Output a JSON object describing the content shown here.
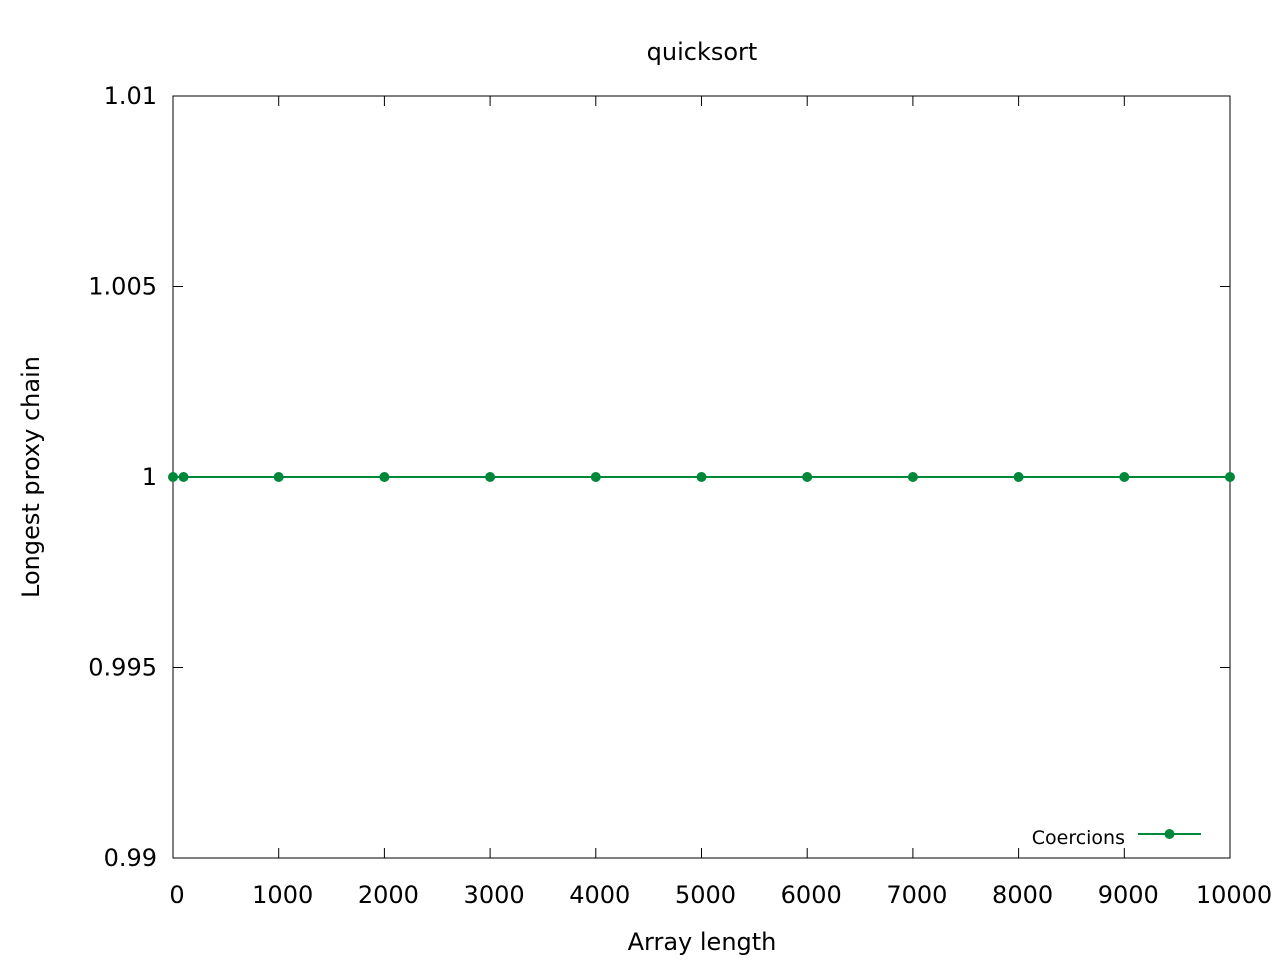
{
  "chart_data": {
    "type": "line",
    "title": "quicksort",
    "xlabel": "Array length",
    "ylabel": "Longest proxy chain",
    "xlim": [
      0,
      10000
    ],
    "ylim": [
      0.99,
      1.01
    ],
    "xticks": [
      0,
      1000,
      2000,
      3000,
      4000,
      5000,
      6000,
      7000,
      8000,
      9000,
      10000
    ],
    "xtick_labels": [
      "0",
      "1000",
      "2000",
      "3000",
      "4000",
      "5000",
      "6000",
      "7000",
      "8000",
      "9000",
      "10000"
    ],
    "yticks": [
      0.99,
      0.995,
      1,
      1.005,
      1.01
    ],
    "ytick_labels": [
      "0.99",
      "0.995",
      "1",
      "1.005",
      "1.01"
    ],
    "grid": false,
    "legend_position": "bottom-right",
    "series": [
      {
        "name": "Coercions",
        "color": "#00883a",
        "x": [
          0,
          100,
          1000,
          2000,
          3000,
          4000,
          5000,
          6000,
          7000,
          8000,
          9000,
          10000
        ],
        "y": [
          1,
          1,
          1,
          1,
          1,
          1,
          1,
          1,
          1,
          1,
          1,
          1
        ]
      }
    ]
  }
}
